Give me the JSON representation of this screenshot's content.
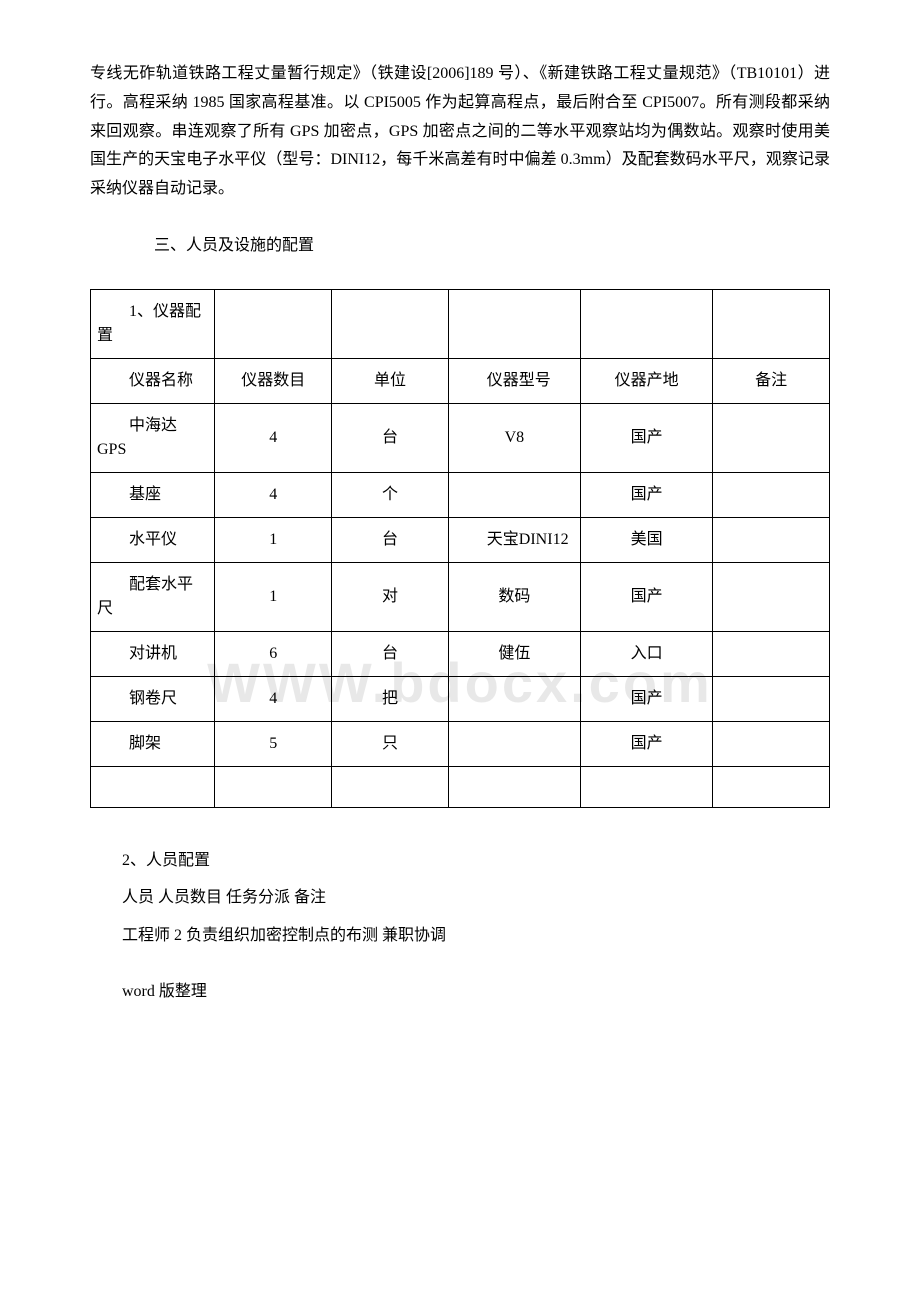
{
  "paragraph": "专线无砟轨道铁路工程丈量暂行规定》（铁建设[2006]189 号）、《新建铁路工程丈量规范》（TB10101）进行。高程采纳 1985 国家高程基准。以 CPI5005 作为起算高程点，最后附合至 CPI5007。所有测段都采纳来回观察。串连观察了所有 GPS 加密点，GPS 加密点之间的二等水平观察站均为偶数站。观察时使用美国生产的天宝电子水平仪（型号：DINI12，每千米高差有时中偏差 0.3mm）及配套数码水平尺，观察记录采纳仪器自动记录。",
  "section3_title": "三、人员及设施的配置",
  "watermark": "WWW.bdocx.com",
  "table": {
    "header_row": {
      "c1": "1、仪器配置",
      "c2": "",
      "c3": "",
      "c4": "",
      "c5": "",
      "c6": ""
    },
    "cols_row": {
      "c1": "仪器名称",
      "c2": "仪器数目",
      "c3": "单位",
      "c4": "仪器型号",
      "c5": "仪器产地",
      "c6": "备注"
    },
    "rows": [
      {
        "c1": "中海达 GPS",
        "c2": "4",
        "c3": "台",
        "c4": "V8",
        "c5": "国产",
        "c6": ""
      },
      {
        "c1": "基座",
        "c2": "4",
        "c3": "个",
        "c4": "",
        "c5": "国产",
        "c6": ""
      },
      {
        "c1": "水平仪",
        "c2": "1",
        "c3": "台",
        "c4": "天宝DINI12",
        "c5": "美国",
        "c6": ""
      },
      {
        "c1": "配套水平尺",
        "c2": "1",
        "c3": "对",
        "c4": "数码",
        "c5": "国产",
        "c6": ""
      },
      {
        "c1": "对讲机",
        "c2": "6",
        "c3": "台",
        "c4": "健伍",
        "c5": "入口",
        "c6": ""
      },
      {
        "c1": "钢卷尺",
        "c2": "4",
        "c3": "把",
        "c4": "",
        "c5": "国产",
        "c6": ""
      },
      {
        "c1": "脚架",
        "c2": "5",
        "c3": "只",
        "c4": "",
        "c5": "国产",
        "c6": ""
      }
    ]
  },
  "bottom": {
    "h": "2、人员配置",
    "l1": "人员 人员数目 任务分派 备注",
    "l2": "工程师 2 负责组织加密控制点的布测 兼职协调"
  },
  "footer": "word 版整理"
}
